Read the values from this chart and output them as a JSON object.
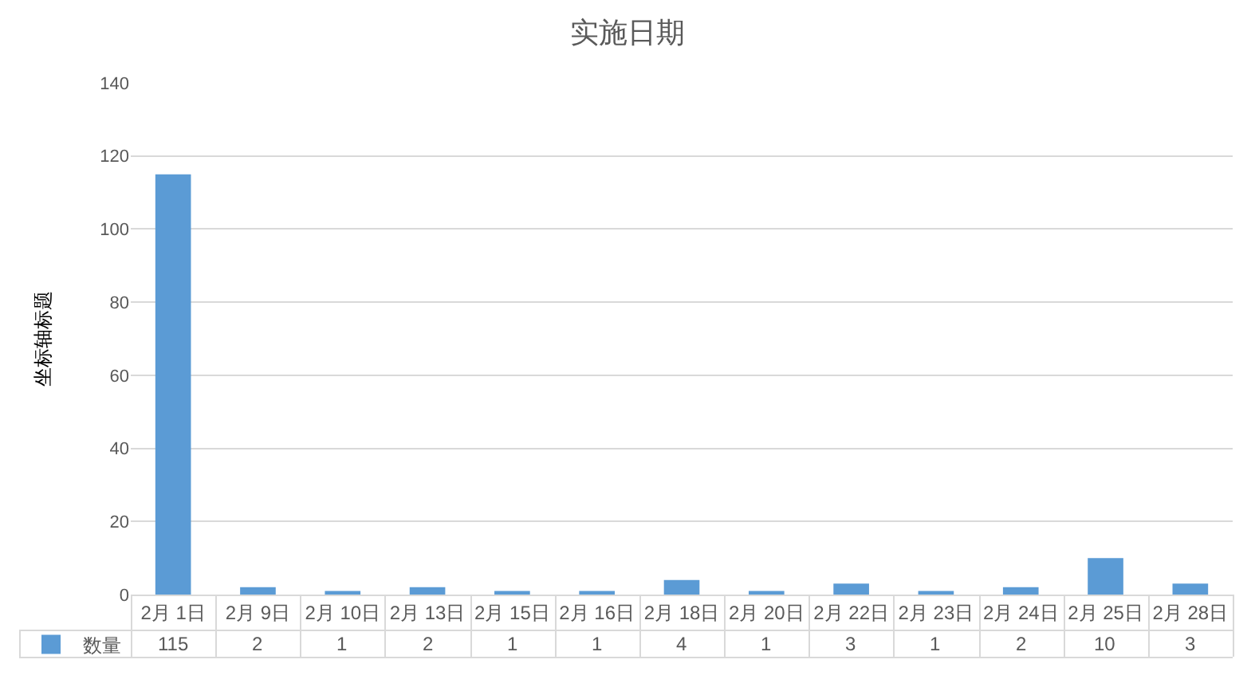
{
  "chart_data": {
    "type": "bar",
    "title": "实施日期",
    "ylabel": "坐标轴标题",
    "categories": [
      "2月 1日",
      "2月 9日",
      "2月 10日",
      "2月 13日",
      "2月 15日",
      "2月 16日",
      "2月 18日",
      "2月 20日",
      "2月 22日",
      "2月 23日",
      "2月 24日",
      "2月 25日",
      "2月 28日"
    ],
    "series": [
      {
        "name": "数量",
        "color": "#5b9bd5",
        "values": [
          115,
          2,
          1,
          2,
          1,
          1,
          4,
          1,
          3,
          1,
          2,
          10,
          3
        ]
      }
    ],
    "ylim": [
      0,
      140
    ],
    "yticks": [
      0,
      20,
      40,
      60,
      80,
      100,
      120,
      140
    ],
    "grid": "y",
    "legend": "bottom left",
    "data_labels": true
  }
}
